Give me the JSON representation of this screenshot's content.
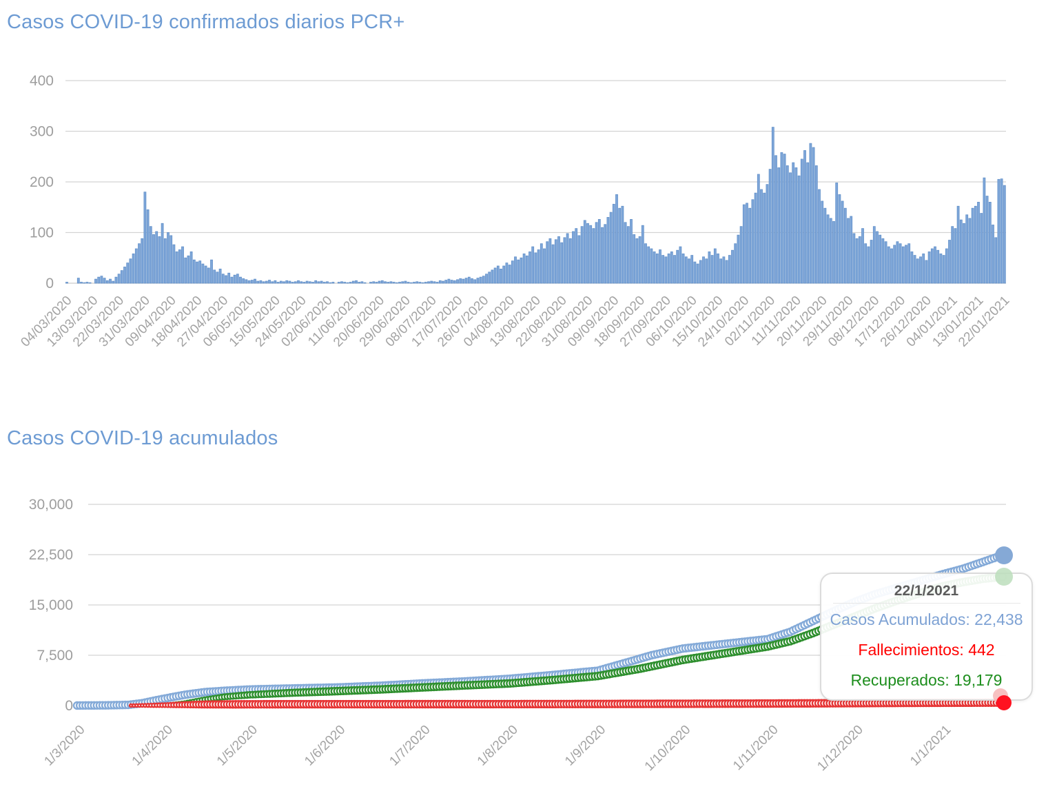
{
  "page": {
    "background": "#FFFFFF"
  },
  "colors": {
    "title": "#6D9BD3",
    "grid": "#D3D3D3",
    "axis_text": "#9E9E9E",
    "bar_fill": "#7FA7D9",
    "bar_stroke": "#6290C9",
    "series_blue": "#84AAD8",
    "series_green": "#2E8F2E",
    "series_red": "#E63434",
    "tooltip_border": "#DBDBDB"
  },
  "charts": {
    "daily": {
      "title": "Casos COVID-19 confirmados diarios PCR+"
    },
    "cumulative": {
      "title": "Casos COVID-19 acumulados"
    }
  },
  "tooltip": {
    "date": "22/1/2021",
    "lines": [
      {
        "name": "casos-acumulados",
        "text": "Casos Acumulados: 22,438",
        "color": "#7EA2D4"
      },
      {
        "name": "fallecimientos",
        "text": "Fallecimientos: 442",
        "color": "#FF0000"
      },
      {
        "name": "recuperados",
        "text": "Recuperados: 19,179",
        "color": "#1E8E1E"
      }
    ]
  },
  "chart_data": [
    {
      "type": "bar",
      "title": "Casos COVID-19 confirmados diarios PCR+",
      "xlabel": "",
      "ylabel": "",
      "ylim": [
        0,
        400
      ],
      "y_ticks": [
        0,
        100,
        200,
        300,
        400
      ],
      "grid": "horizontal",
      "date_start": "04/03/2020",
      "date_end": "22/01/2021",
      "x_tick_every_days": 9,
      "x_tick_labels": [
        "04/03/2020",
        "13/03/2020",
        "22/03/2020",
        "31/03/2020",
        "09/04/2020",
        "18/04/2020",
        "27/04/2020",
        "06/05/2020",
        "15/05/2020",
        "24/05/2020",
        "02/06/2020",
        "11/06/2020",
        "20/06/2020",
        "29/06/2020",
        "08/07/2020",
        "17/07/2020",
        "26/07/2020",
        "04/08/2020",
        "13/08/2020",
        "22/08/2020",
        "31/08/2020",
        "09/09/2020",
        "18/09/2020",
        "27/09/2020",
        "06/10/2020",
        "15/10/2020",
        "24/10/2020",
        "02/11/2020",
        "11/11/2020",
        "20/11/2020",
        "29/11/2020",
        "08/12/2020",
        "17/12/2020",
        "26/12/2020",
        "04/01/2021",
        "13/01/2021",
        "22/01/2021"
      ],
      "bar_color": "#7FA7D9",
      "bar_stroke": "#6290C9",
      "values": [
        2,
        0,
        0,
        0,
        10,
        2,
        1,
        2,
        1,
        0,
        8,
        12,
        14,
        10,
        5,
        8,
        4,
        12,
        18,
        25,
        32,
        40,
        48,
        58,
        68,
        78,
        88,
        180,
        145,
        112,
        96,
        102,
        92,
        118,
        88,
        100,
        94,
        76,
        62,
        66,
        72,
        50,
        54,
        62,
        46,
        42,
        44,
        38,
        34,
        30,
        46,
        26,
        22,
        28,
        18,
        15,
        20,
        12,
        16,
        18,
        12,
        9,
        7,
        5,
        6,
        8,
        4,
        5,
        3,
        4,
        6,
        3,
        5,
        2,
        4,
        3,
        5,
        4,
        2,
        3,
        5,
        3,
        2,
        4,
        3,
        2,
        5,
        3,
        4,
        2,
        3,
        1,
        2,
        0,
        2,
        3,
        2,
        1,
        2,
        4,
        5,
        2,
        3,
        1,
        0,
        2,
        3,
        2,
        4,
        5,
        3,
        2,
        3,
        2,
        1,
        2,
        3,
        4,
        2,
        1,
        2,
        3,
        2,
        1,
        2,
        3,
        4,
        3,
        2,
        5,
        4,
        6,
        8,
        6,
        5,
        7,
        9,
        8,
        10,
        12,
        9,
        7,
        10,
        12,
        14,
        18,
        22,
        26,
        30,
        34,
        28,
        34,
        40,
        36,
        44,
        52,
        46,
        50,
        58,
        54,
        62,
        72,
        60,
        66,
        78,
        68,
        82,
        88,
        76,
        86,
        92,
        80,
        90,
        98,
        88,
        102,
        108,
        94,
        112,
        124,
        118,
        114,
        108,
        120,
        126,
        110,
        116,
        130,
        140,
        156,
        175,
        148,
        152,
        120,
        112,
        126,
        96,
        88,
        92,
        114,
        78,
        72,
        68,
        62,
        58,
        66,
        55,
        52,
        58,
        62,
        55,
        65,
        72,
        58,
        52,
        48,
        55,
        42,
        38,
        45,
        52,
        48,
        62,
        55,
        68,
        58,
        48,
        52,
        45,
        55,
        65,
        78,
        95,
        112,
        155,
        158,
        148,
        165,
        178,
        215,
        185,
        178,
        195,
        225,
        308,
        252,
        228,
        258,
        255,
        232,
        218,
        238,
        228,
        212,
        245,
        262,
        238,
        276,
        268,
        232,
        185,
        162,
        148,
        135,
        128,
        122,
        198,
        175,
        162,
        148,
        128,
        132,
        98,
        88,
        92,
        108,
        78,
        72,
        85,
        112,
        102,
        95,
        88,
        82,
        72,
        68,
        75,
        82,
        78,
        72,
        75,
        78,
        62,
        55,
        48,
        52,
        58,
        45,
        62,
        68,
        72,
        65,
        58,
        55,
        68,
        85,
        112,
        108,
        152,
        125,
        118,
        135,
        128,
        148,
        152,
        160,
        138,
        208,
        172,
        160,
        115,
        90,
        205,
        206,
        193
      ]
    },
    {
      "type": "scatter",
      "title": "Casos COVID-19 acumulados",
      "xlabel": "",
      "ylabel": "",
      "ylim": [
        0,
        30000
      ],
      "y_ticks": [
        0,
        7500,
        15000,
        22500,
        30000
      ],
      "grid": "horizontal",
      "legend": "none",
      "total_days": 327,
      "x_tick_labels": [
        "1/3/2020",
        "1/4/2020",
        "1/5/2020",
        "1/6/2020",
        "1/7/2020",
        "1/8/2020",
        "1/9/2020",
        "1/10/2020",
        "1/11/2020",
        "1/12/2020",
        "1/1/2021"
      ],
      "x_tick_days": [
        0,
        31,
        61,
        92,
        122,
        153,
        184,
        214,
        245,
        275,
        306
      ],
      "series": [
        {
          "name": "Casos Acumulados",
          "color": "#84AAD8",
          "endpoint_color": "#85A9D6",
          "final_value": 22438,
          "final_date": "22/1/2021",
          "anchors": [
            [
              0,
              5
            ],
            [
              10,
              30
            ],
            [
              18,
              100
            ],
            [
              23,
              350
            ],
            [
              28,
              800
            ],
            [
              31,
              1050
            ],
            [
              38,
              1600
            ],
            [
              45,
              2000
            ],
            [
              52,
              2200
            ],
            [
              61,
              2400
            ],
            [
              76,
              2550
            ],
            [
              92,
              2700
            ],
            [
              107,
              2950
            ],
            [
              122,
              3300
            ],
            [
              137,
              3600
            ],
            [
              153,
              4000
            ],
            [
              168,
              4550
            ],
            [
              184,
              5200
            ],
            [
              194,
              6400
            ],
            [
              203,
              7500
            ],
            [
              214,
              8500
            ],
            [
              229,
              9200
            ],
            [
              244,
              9900
            ],
            [
              252,
              11000
            ],
            [
              260,
              12600
            ],
            [
              267,
              14000
            ],
            [
              275,
              15500
            ],
            [
              282,
              16600
            ],
            [
              290,
              17600
            ],
            [
              298,
              18600
            ],
            [
              306,
              19600
            ],
            [
              313,
              20400
            ],
            [
              320,
              21400
            ],
            [
              327,
              22438
            ]
          ]
        },
        {
          "name": "Recuperados",
          "color": "#2E8F2E",
          "endpoint_color": "#BCDEBC",
          "final_value": 19179,
          "final_date": "22/1/2021",
          "anchors": [
            [
              24,
              0
            ],
            [
              31,
              80
            ],
            [
              38,
              400
            ],
            [
              45,
              900
            ],
            [
              52,
              1300
            ],
            [
              61,
              1600
            ],
            [
              76,
              1900
            ],
            [
              92,
              2150
            ],
            [
              107,
              2400
            ],
            [
              122,
              2700
            ],
            [
              137,
              3000
            ],
            [
              153,
              3300
            ],
            [
              168,
              3800
            ],
            [
              184,
              4400
            ],
            [
              199,
              5500
            ],
            [
              214,
              6800
            ],
            [
              229,
              7800
            ],
            [
              244,
              8800
            ],
            [
              252,
              9600
            ],
            [
              260,
              10800
            ],
            [
              267,
              12000
            ],
            [
              275,
              13300
            ],
            [
              282,
              14500
            ],
            [
              290,
              15700
            ],
            [
              298,
              16800
            ],
            [
              306,
              17800
            ],
            [
              313,
              18400
            ],
            [
              320,
              18900
            ],
            [
              327,
              19179
            ]
          ]
        },
        {
          "name": "Fallecimientos",
          "color": "#E63434",
          "endpoint_color": "#FF1221",
          "final_value": 442,
          "final_date": "22/1/2021",
          "anchors": [
            [
              19,
              0
            ],
            [
              24,
              20
            ],
            [
              31,
              60
            ],
            [
              38,
              120
            ],
            [
              45,
              160
            ],
            [
              61,
              190
            ],
            [
              92,
              200
            ],
            [
              122,
              205
            ],
            [
              153,
              215
            ],
            [
              184,
              235
            ],
            [
              214,
              265
            ],
            [
              244,
              300
            ],
            [
              260,
              330
            ],
            [
              275,
              360
            ],
            [
              290,
              395
            ],
            [
              306,
              420
            ],
            [
              327,
              442
            ]
          ]
        }
      ]
    }
  ]
}
